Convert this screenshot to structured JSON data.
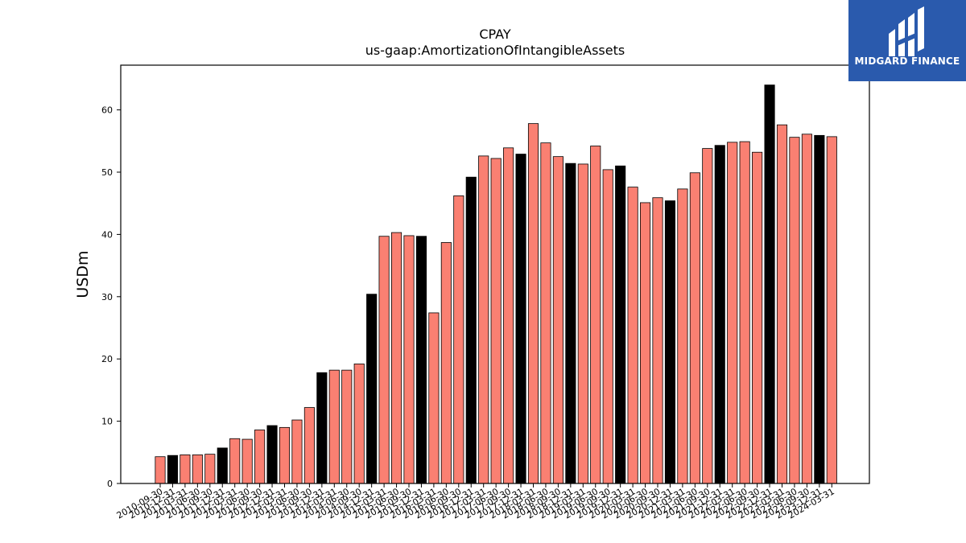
{
  "chart_data": {
    "type": "bar",
    "title": "CPAY",
    "subtitle": "us-gaap:AmortizationOfIntangibleAssets",
    "xlabel": "",
    "ylabel": "USDm",
    "ylim": [
      0,
      67
    ],
    "yticks": [
      0,
      10,
      20,
      30,
      40,
      50,
      60
    ],
    "grid": false,
    "colors": {
      "quarter": "#fa8072",
      "year_end": "#000000",
      "edge": "#000000"
    },
    "categories": [
      "2010-09-30",
      "2010-12-31",
      "2011-03-31",
      "2011-06-30",
      "2011-09-30",
      "2011-12-31",
      "2012-03-31",
      "2012-06-30",
      "2012-09-30",
      "2012-12-31",
      "2013-03-31",
      "2013-06-30",
      "2013-09-30",
      "2013-12-31",
      "2014-03-31",
      "2014-06-30",
      "2014-09-30",
      "2014-12-31",
      "2015-03-31",
      "2015-06-30",
      "2015-09-30",
      "2015-12-31",
      "2016-03-31",
      "2016-06-30",
      "2016-09-30",
      "2016-12-31",
      "2017-03-31",
      "2017-06-30",
      "2017-09-30",
      "2017-12-31",
      "2018-03-31",
      "2018-06-30",
      "2018-09-30",
      "2018-12-31",
      "2019-03-31",
      "2019-06-30",
      "2019-09-30",
      "2019-12-31",
      "2020-03-31",
      "2020-06-30",
      "2020-09-30",
      "2020-12-31",
      "2021-03-31",
      "2021-06-30",
      "2021-09-30",
      "2021-12-31",
      "2022-03-31",
      "2022-06-30",
      "2022-09-30",
      "2022-12-31",
      "2023-03-31",
      "2023-06-30",
      "2023-09-30",
      "2023-12-31",
      "2024-03-31"
    ],
    "values": [
      4.3,
      4.5,
      4.6,
      4.6,
      4.7,
      5.7,
      7.2,
      7.1,
      8.6,
      9.3,
      9.0,
      10.2,
      12.2,
      17.8,
      18.2,
      18.2,
      19.2,
      30.4,
      39.7,
      40.3,
      39.8,
      39.7,
      27.4,
      38.7,
      46.2,
      49.2,
      52.6,
      52.2,
      53.9,
      52.9,
      57.8,
      54.7,
      52.5,
      51.4,
      51.3,
      54.2,
      50.4,
      51.0,
      47.6,
      45.1,
      45.9,
      45.4,
      47.3,
      49.9,
      53.8,
      54.3,
      54.8,
      54.9,
      53.2,
      64.0,
      57.6,
      55.6,
      56.1,
      55.9,
      55.7
    ]
  },
  "logo": {
    "text": "MIDGARD FINANCE"
  }
}
